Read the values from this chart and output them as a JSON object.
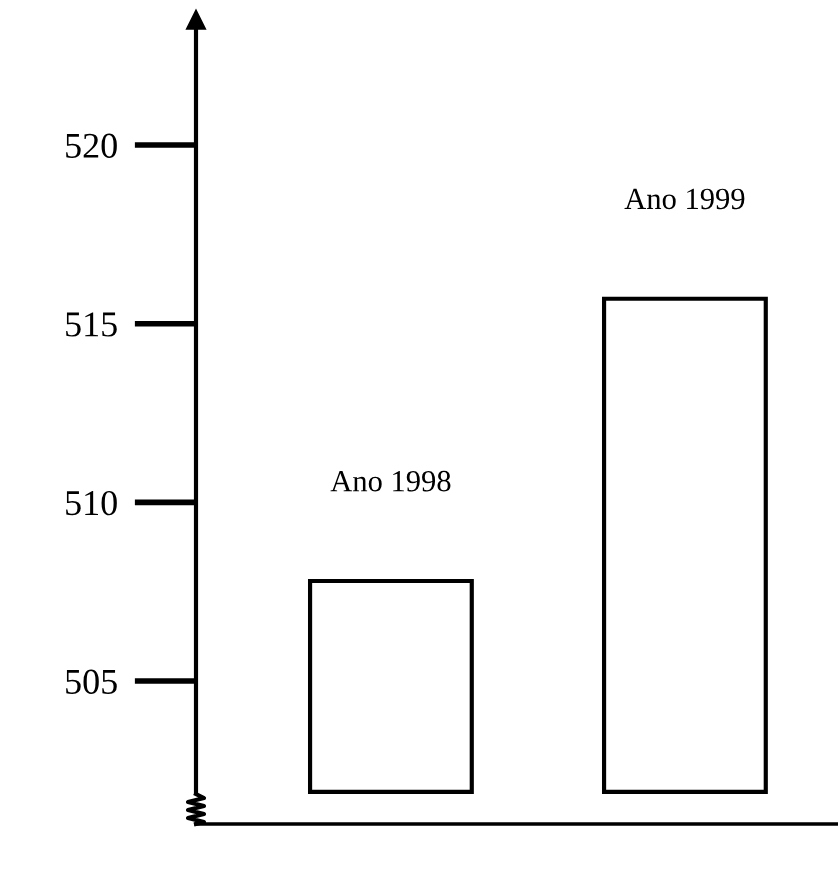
{
  "chart_data": {
    "type": "bar",
    "categories": [
      "Ano 1998",
      "Ano 1999"
    ],
    "base": [
      501.9,
      501.9
    ],
    "values": [
      5.9,
      13.8
    ],
    "color": "#000000",
    "ylim": [
      501,
      523.5
    ],
    "yticks": [
      505,
      510,
      515,
      520
    ],
    "grid": false,
    "legend": false
  }
}
